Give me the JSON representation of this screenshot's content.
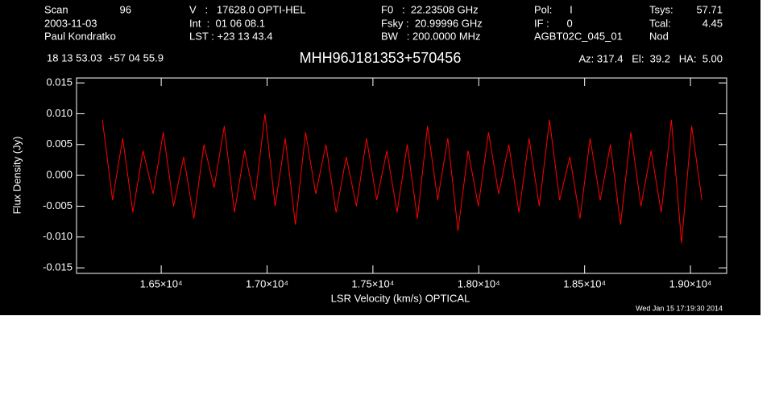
{
  "header": {
    "fields": [
      "Scan",
      "96",
      "2003-11-03",
      "Paul Kondratko",
      "V   :   17628.0 OPTI-HEL",
      "Int  :  01 06 08.1",
      "LST : +23 13 43.4",
      "F0   :  22.23508 GHz",
      "Fsky :  20.99996 GHz",
      "BW   : 200.0000 MHz",
      "Pol:      I",
      "IF :      0",
      "AGBT02C_045_01",
      "Tsys:",
      "57.71",
      "Tcal:",
      "4.45",
      "Nod",
      "18 13 53.03  +57 04 55.9",
      "Az: 317.4   El:  39.2   HA:  5.00"
    ],
    "timestamp": "Wed Jan 15 17:19:30 2014"
  },
  "chart_data": {
    "type": "line",
    "title": "MHH96J181353+570456",
    "x_label": "LSR Velocity (km/s) OPTICAL",
    "y_label": "Flux Density (Jy)",
    "xlim": [
      16100,
      19171
    ],
    "ylim": [
      -0.0159,
      0.0158
    ],
    "xticks": [
      {
        "value": 16500,
        "label": "1.65×10⁴"
      },
      {
        "value": 17000,
        "label": "1.70×10⁴"
      },
      {
        "value": 17500,
        "label": "1.75×10⁴"
      },
      {
        "value": 18000,
        "label": "1.80×10⁴"
      },
      {
        "value": 18500,
        "label": "1.85×10⁴"
      },
      {
        "value": 19000,
        "label": "1.90×10⁴"
      }
    ],
    "yticks": [
      0.015,
      {
        "value": 0.01,
        "label": "0.010"
      },
      0.005,
      {
        "value": 0,
        "label": "0.000"
      },
      -0.005,
      {
        "value": -0.01,
        "label": "-0.010"
      },
      -0.015
    ],
    "series": [
      {
        "name": "Flux",
        "color": "#ff0000",
        "x": [
          16222,
          16270,
          16318,
          16366,
          16414,
          16462,
          16510,
          16558,
          16606,
          16654,
          16702,
          16750,
          16798,
          16846,
          16894,
          16942,
          16990,
          17038,
          17086,
          17134,
          17182,
          17230,
          17278,
          17326,
          17374,
          17422,
          17470,
          17518,
          17566,
          17614,
          17662,
          17710,
          17758,
          17806,
          17854,
          17902,
          17950,
          17998,
          18046,
          18094,
          18142,
          18190,
          18238,
          18286,
          18334,
          18382,
          18430,
          18478,
          18526,
          18574,
          18622,
          18670,
          18718,
          18766,
          18814,
          18862,
          18910,
          18958,
          19006,
          19054
        ],
        "values": [
          0.009,
          -0.004,
          0.006,
          -0.006,
          0.004,
          -0.003,
          0.007,
          -0.005,
          0.003,
          -0.007,
          0.005,
          -0.002,
          0.008,
          -0.006,
          0.004,
          -0.004,
          0.01,
          -0.005,
          0.006,
          -0.008,
          0.007,
          -0.003,
          0.005,
          -0.006,
          0.003,
          -0.005,
          0.006,
          -0.004,
          0.004,
          -0.006,
          0.005,
          -0.007,
          0.008,
          -0.004,
          0.006,
          -0.009,
          0.004,
          -0.005,
          0.007,
          -0.003,
          0.005,
          -0.006,
          0.006,
          -0.005,
          0.009,
          -0.004,
          0.003,
          -0.007,
          0.006,
          -0.004,
          0.005,
          -0.008,
          0.007,
          -0.005,
          0.004,
          -0.006,
          0.009,
          -0.011,
          0.008,
          -0.004
        ]
      }
    ]
  }
}
